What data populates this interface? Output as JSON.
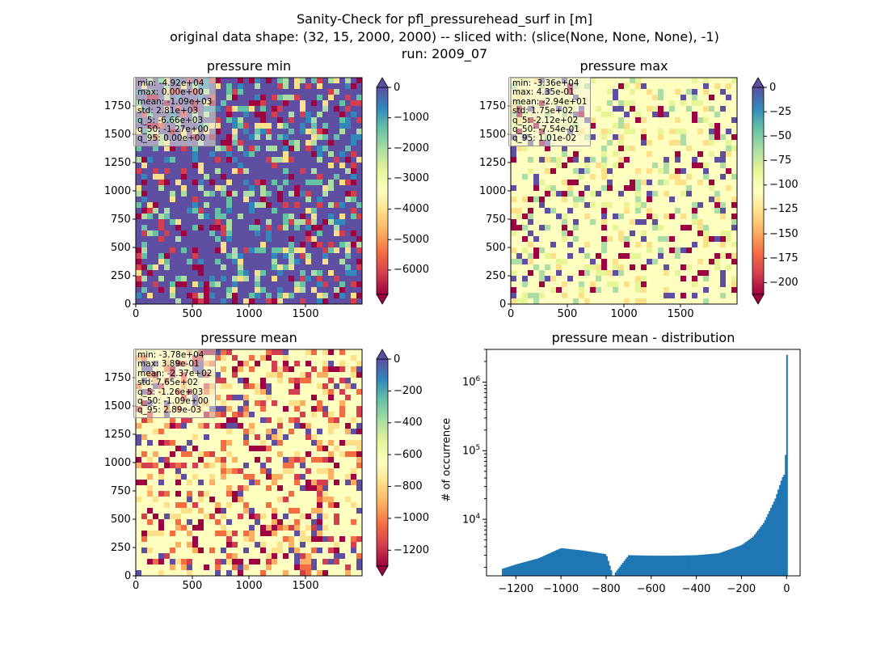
{
  "suptitle": {
    "line1": "Sanity-Check for pfl_pressurehead_surf in [m]",
    "line2": "original data shape: (32, 15, 2000, 2000) -- sliced with: (slice(None, None, None), -1)",
    "line3": "run: 2009_07"
  },
  "chart_data": [
    {
      "type": "heatmap",
      "title": "pressure min",
      "colormap": "Spectral",
      "xticks": [
        "0",
        "500",
        "1000",
        "1500"
      ],
      "yticks": [
        "0",
        "250",
        "500",
        "750",
        "1000",
        "1250",
        "1500",
        "1750"
      ],
      "xlim": [
        0,
        2000
      ],
      "ylim": [
        0,
        2000
      ],
      "colorbar": {
        "ticks": [
          "0",
          "−1000",
          "−2000",
          "−3000",
          "−4000",
          "−5000",
          "−6000"
        ],
        "range": [
          -6800,
          0
        ]
      },
      "stats": [
        "min: -4.92e+04",
        "max: 0.00e+00",
        "mean: -1.09e+03",
        "std: 2.81e+03",
        "q_5: -6.66e+03",
        "q_50: -1.27e+00",
        "q_95: 0.00e+00"
      ]
    },
    {
      "type": "heatmap",
      "title": "pressure max",
      "colormap": "Spectral",
      "xticks": [
        "0",
        "500",
        "1000",
        "1500"
      ],
      "yticks": [
        "0",
        "250",
        "500",
        "750",
        "1000",
        "1250",
        "1500",
        "1750"
      ],
      "xlim": [
        0,
        2000
      ],
      "ylim": [
        0,
        2000
      ],
      "colorbar": {
        "ticks": [
          "0",
          "−25",
          "−50",
          "−75",
          "−100",
          "−125",
          "−150",
          "−175",
          "−200"
        ],
        "range": [
          -212,
          0
        ]
      },
      "stats": [
        "min: -3.36e+04",
        "max: 4.35e-01",
        "mean: -2.94e+01",
        "std: 1.75e+02",
        "q_5: -2.12e+02",
        "q_50: -7.54e-01",
        "q_95: 1.01e-02"
      ]
    },
    {
      "type": "heatmap",
      "title": "pressure mean",
      "colormap": "Spectral",
      "xticks": [
        "0",
        "500",
        "1000",
        "1500"
      ],
      "yticks": [
        "0",
        "250",
        "500",
        "750",
        "1000",
        "1250",
        "1500",
        "1750"
      ],
      "xlim": [
        0,
        2000
      ],
      "ylim": [
        0,
        2000
      ],
      "colorbar": {
        "ticks": [
          "0",
          "−200",
          "−400",
          "−600",
          "−800",
          "−1000",
          "−1200"
        ],
        "range": [
          -1300,
          0
        ]
      },
      "stats": [
        "min: -3.78e+04",
        "max: 3.89e-01",
        "mean: -2.37e+02",
        "std: 7.65e+02",
        "q_5: -1.26e+03",
        "q_50: -1.09e+00",
        "q_95: 2.89e-03"
      ]
    },
    {
      "type": "bar",
      "title": "pressure mean - distribution",
      "ylabel": "# of occurrence",
      "yscale": "log",
      "xlim": [
        -1330,
        60
      ],
      "ylim": [
        1500,
        3000000
      ],
      "xticks": [
        "−1200",
        "−1000",
        "−800",
        "−600",
        "−400",
        "−200",
        "0"
      ],
      "yticks": [
        "10^4",
        "10^5",
        "10^6"
      ],
      "color": "#1f77b4",
      "bins": {
        "x": [
          -1260,
          -1200,
          -1100,
          -1000,
          -900,
          -800,
          -770,
          -700,
          -600,
          -500,
          -400,
          -300,
          -200,
          -150,
          -100,
          -50,
          -20,
          -5,
          0
        ],
        "y": [
          1900,
          2200,
          2700,
          3800,
          3500,
          3100,
          1500,
          3000,
          2950,
          2950,
          3000,
          3200,
          4200,
          5500,
          9000,
          20000,
          40000,
          48000,
          2500000
        ]
      }
    }
  ],
  "colors": {
    "hist": "#1f77b4",
    "statbox_fill": "rgba(245,245,222,0.5)"
  }
}
